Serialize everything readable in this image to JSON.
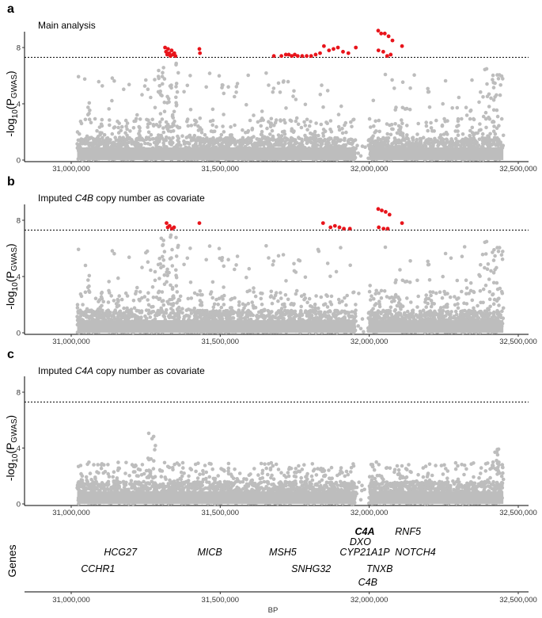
{
  "chart_data": [
    {
      "type": "scatter",
      "panel_label": "a",
      "title": "Main analysis",
      "title_italic": "",
      "title_suffix": "",
      "ylabel": "-log10(PGWAS)",
      "ylabel_parts": {
        "pre": "-log",
        "sub1": "10",
        "mid": "(P",
        "sub2": "GWAS",
        "post": ")"
      },
      "xlim": [
        31000000,
        32500000
      ],
      "ylim": [
        0,
        9.3
      ],
      "yticks": [
        0,
        4,
        8
      ],
      "xticks": [
        "31,000,000",
        "31,500,000",
        "32,000,000",
        "32,500,000"
      ],
      "xtick_values": [
        31000000,
        31500000,
        32000000,
        32500000
      ],
      "threshold": 7.3,
      "grid": false,
      "colors": {
        "background": "#bdbdbd",
        "significant": "#e8141b"
      },
      "series": [
        {
          "values": [
            [
              31315000,
              8.0
            ],
            [
              31318000,
              7.7
            ],
            [
              31322000,
              7.5
            ],
            [
              31325000,
              7.9
            ],
            [
              31329000,
              7.6
            ],
            [
              31333000,
              7.4
            ],
            [
              31337000,
              7.8
            ],
            [
              31341000,
              7.5
            ],
            [
              31346000,
              7.6
            ],
            [
              31350000,
              7.4
            ],
            [
              31430000,
              7.9
            ],
            [
              31432000,
              7.6
            ],
            [
              31680000,
              7.4
            ],
            [
              31705000,
              7.4
            ],
            [
              31720000,
              7.5
            ],
            [
              31730000,
              7.5
            ],
            [
              31740000,
              7.4
            ],
            [
              31750000,
              7.5
            ],
            [
              31760000,
              7.4
            ],
            [
              31775000,
              7.4
            ],
            [
              31790000,
              7.4
            ],
            [
              31805000,
              7.4
            ],
            [
              31820000,
              7.5
            ],
            [
              31835000,
              7.6
            ],
            [
              31848000,
              8.1
            ],
            [
              31865000,
              7.8
            ],
            [
              31880000,
              7.9
            ],
            [
              31895000,
              8.0
            ],
            [
              31912000,
              7.7
            ],
            [
              31930000,
              7.6
            ],
            [
              31955000,
              8.0
            ],
            [
              32030000,
              9.2
            ],
            [
              32040000,
              9.0
            ],
            [
              32052000,
              9.0
            ],
            [
              32065000,
              8.8
            ],
            [
              32078000,
              8.5
            ],
            [
              32031000,
              7.8
            ],
            [
              32047000,
              7.7
            ],
            [
              32060000,
              7.4
            ],
            [
              32072000,
              7.5
            ],
            [
              32110000,
              8.1
            ]
          ]
        }
      ]
    },
    {
      "type": "scatter",
      "panel_label": "b",
      "title": "Imputed ",
      "title_italic": "C4B",
      "title_suffix": " copy number as covariate",
      "ylabel": "-log10(PGWAS)",
      "ylabel_parts": {
        "pre": "-log",
        "sub1": "10",
        "mid": "(P",
        "sub2": "GWAS",
        "post": ")"
      },
      "xlim": [
        31000000,
        32500000
      ],
      "ylim": [
        0,
        9.3
      ],
      "yticks": [
        0,
        4,
        8
      ],
      "xticks": [
        "31,000,000",
        "31,500,000",
        "32,000,000",
        "32,500,000"
      ],
      "xtick_values": [
        31000000,
        31500000,
        32000000,
        32500000
      ],
      "threshold": 7.3,
      "grid": false,
      "colors": {
        "background": "#bdbdbd",
        "significant": "#e8141b"
      },
      "series": [
        {
          "values": [
            [
              31320000,
              7.8
            ],
            [
              31324000,
              7.5
            ],
            [
              31330000,
              7.6
            ],
            [
              31338000,
              7.4
            ],
            [
              31345000,
              7.5
            ],
            [
              31430000,
              7.8
            ],
            [
              31845000,
              7.8
            ],
            [
              31870000,
              7.5
            ],
            [
              31885000,
              7.6
            ],
            [
              31900000,
              7.5
            ],
            [
              31915000,
              7.4
            ],
            [
              31935000,
              7.4
            ],
            [
              32030000,
              8.8
            ],
            [
              32042000,
              8.7
            ],
            [
              32055000,
              8.6
            ],
            [
              32068000,
              8.4
            ],
            [
              32032000,
              7.5
            ],
            [
              32048000,
              7.4
            ],
            [
              32062000,
              7.4
            ],
            [
              32110000,
              7.8
            ]
          ]
        }
      ]
    },
    {
      "type": "scatter",
      "panel_label": "c",
      "title": "Imputed ",
      "title_italic": "C4A",
      "title_suffix": " copy number as covariate",
      "ylabel": "-log10(PGWAS)",
      "ylabel_parts": {
        "pre": "-log",
        "sub1": "10",
        "mid": "(P",
        "sub2": "GWAS",
        "post": ")"
      },
      "xlim": [
        31000000,
        32500000
      ],
      "ylim": [
        0,
        9.3
      ],
      "yticks": [
        0,
        4,
        8
      ],
      "xticks": [
        "31,000,000",
        "31,500,000",
        "32,000,000",
        "32,500,000"
      ],
      "xtick_values": [
        31000000,
        31500000,
        32000000,
        32500000
      ],
      "threshold": 7.3,
      "grid": false,
      "colors": {
        "background": "#bdbdbd",
        "significant": "#e8141b"
      },
      "series": []
    }
  ],
  "genes_track": {
    "ylabel": "Genes",
    "xlabel": "BP",
    "xlim": [
      31000000,
      32500000
    ],
    "xticks": [
      "31,000,000",
      "31,500,000",
      "32,000,000",
      "32,500,000"
    ],
    "xtick_values": [
      31000000,
      31500000,
      32000000,
      32500000
    ],
    "genes": [
      {
        "name": "C4A",
        "pos": 31985000,
        "row": 0,
        "bold": true
      },
      {
        "name": "RNF5",
        "pos": 32130000,
        "row": 0,
        "bold": false
      },
      {
        "name": "DXO",
        "pos": 31970000,
        "row": 1,
        "bold": false
      },
      {
        "name": "HCG27",
        "pos": 31165000,
        "row": 2,
        "bold": false
      },
      {
        "name": "MICB",
        "pos": 31465000,
        "row": 2,
        "bold": false
      },
      {
        "name": "MSH5",
        "pos": 31710000,
        "row": 2,
        "bold": false
      },
      {
        "name": "CYP21A1P",
        "pos": 31985000,
        "row": 2,
        "bold": false
      },
      {
        "name": "NOTCH4",
        "pos": 32155000,
        "row": 2,
        "bold": false
      },
      {
        "name": "CCHR1",
        "pos": 31090000,
        "row": 3,
        "bold": false
      },
      {
        "name": "SNHG32",
        "pos": 31805000,
        "row": 3,
        "bold": false
      },
      {
        "name": "TNXB",
        "pos": 32035000,
        "row": 3,
        "bold": false
      },
      {
        "name": "C4B",
        "pos": 31995000,
        "row": 4,
        "bold": false
      }
    ]
  }
}
